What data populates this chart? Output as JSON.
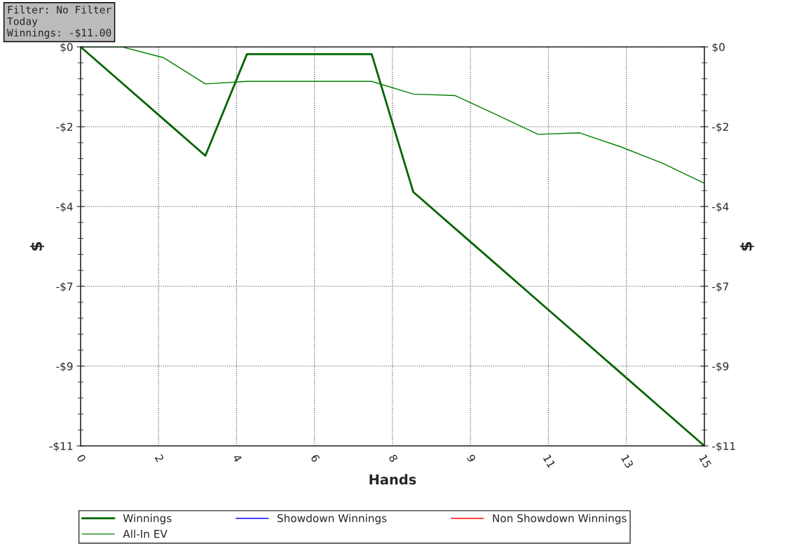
{
  "chart_data": {
    "type": "line",
    "xlabel": "Hands",
    "ylabel": "$",
    "y2label": "$",
    "x": [
      0,
      1,
      2,
      3,
      4,
      5,
      6,
      7,
      8,
      9,
      10,
      11,
      12,
      13,
      14,
      15
    ],
    "series": [
      {
        "name": "Winnings",
        "color": "#006400",
        "values": [
          0,
          -1,
          -2,
          -3,
          -0.2,
          -0.2,
          -0.2,
          -0.2,
          -4.0,
          -5,
          -6,
          -7,
          -8,
          -9,
          -10,
          -11
        ]
      },
      {
        "name": "Showdown Winnings",
        "color": "#0000ff",
        "values": [
          null,
          null,
          null,
          null,
          null,
          null,
          null,
          null,
          null,
          null,
          null,
          null,
          null,
          null,
          null,
          null
        ]
      },
      {
        "name": "Non Showdown Winnings",
        "color": "#ff0000",
        "values": [
          null,
          null,
          null,
          null,
          null,
          null,
          null,
          null,
          null,
          null,
          null,
          null,
          null,
          null,
          null,
          null
        ]
      },
      {
        "name": "All-In EV",
        "color": "#008000",
        "values": [
          0,
          0,
          -0.3,
          -1.02,
          -0.95,
          -0.95,
          -0.95,
          -0.95,
          -1.3,
          -1.34,
          -1.87,
          -2.41,
          -2.37,
          -2.76,
          -3.21,
          -3.76
        ]
      }
    ],
    "xlim": [
      0,
      15
    ],
    "xticks": [
      0,
      {
        "value": 1.875,
        "label": "2"
      },
      {
        "value": 3.75,
        "label": "4"
      },
      {
        "value": 5.625,
        "label": "6"
      },
      {
        "value": 7.5,
        "label": "8"
      },
      {
        "value": 9.375,
        "label": "9"
      },
      {
        "value": 11.25,
        "label": "11"
      },
      {
        "value": 13.125,
        "label": "13"
      },
      15
    ],
    "ylim": [
      -11,
      0
    ],
    "yticks": [
      {
        "value": 0,
        "label": "$0"
      },
      {
        "value": -2.2,
        "label": "-$2"
      },
      {
        "value": -4.4,
        "label": "-$4"
      },
      {
        "value": -6.6,
        "label": "-$7"
      },
      {
        "value": -8.8,
        "label": "-$9"
      },
      {
        "value": -11,
        "label": "-$11"
      }
    ],
    "y2lim": [
      -11,
      0
    ],
    "y2ticks": [
      {
        "value": 0,
        "label": "$0"
      },
      {
        "value": -2.2,
        "label": "-$2"
      },
      {
        "value": -4.4,
        "label": "-$4"
      },
      {
        "value": -6.6,
        "label": "-$7"
      },
      {
        "value": -8.8,
        "label": "-$9"
      },
      {
        "value": -11,
        "label": "-$11"
      }
    ],
    "grid": true,
    "legend": "bottom",
    "marker": "none",
    "line_style": "solid",
    "annotations": [
      "Filter: No Filter\nToday\nWinnings: -$11.00"
    ]
  }
}
